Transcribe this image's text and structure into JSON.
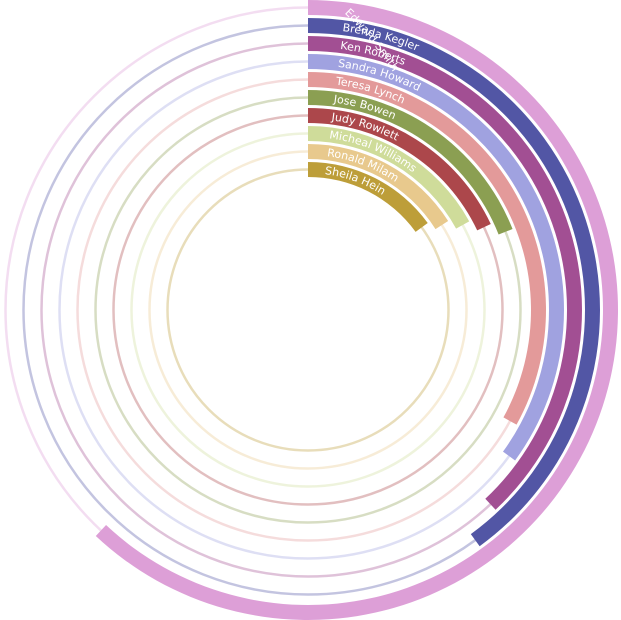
{
  "chart_data": {
    "type": "radial-bar",
    "max": 100,
    "start_angle_deg": 0,
    "series": [
      {
        "name": "Edward Smith",
        "value": 62,
        "color": "#dd9fd7"
      },
      {
        "name": "Brenda Kegler",
        "value": 40,
        "color": "#5256a5"
      },
      {
        "name": "Ken Roberts",
        "value": 38,
        "color": "#a24f93"
      },
      {
        "name": "Sandra Howard",
        "value": 35,
        "color": "#a0a2e0"
      },
      {
        "name": "Teresa Lynch",
        "value": 33,
        "color": "#e39a9a"
      },
      {
        "name": "Jose Bowen",
        "value": 19,
        "color": "#8b9f52"
      },
      {
        "name": "Judy Rowlett",
        "value": 18,
        "color": "#ac474b"
      },
      {
        "name": "Micheal Williams",
        "value": 17,
        "color": "#cfdc9a"
      },
      {
        "name": "Ronald Milam",
        "value": 16,
        "color": "#e8c98d"
      },
      {
        "name": "Sheila Hein",
        "value": 15,
        "color": "#bd9e39"
      }
    ]
  }
}
